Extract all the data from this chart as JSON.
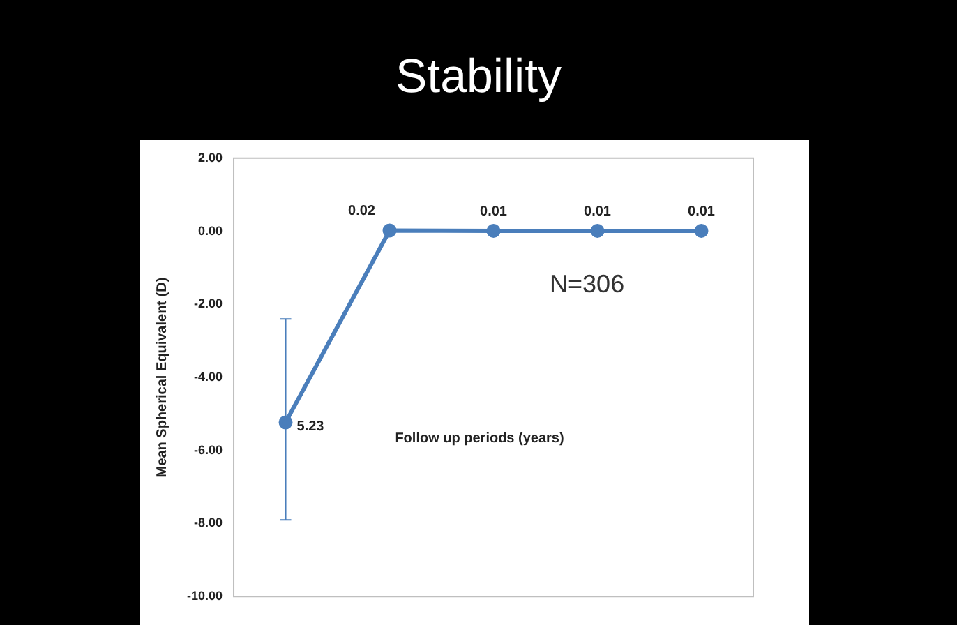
{
  "chart_data": {
    "type": "line",
    "title": "Stability",
    "ylabel": "Mean Spherical Equivalent (D)",
    "xlabel": "Follow up periods (years)",
    "categories": [
      null,
      null,
      null,
      null,
      null
    ],
    "series": [
      {
        "color": "#4a7ebb",
        "values": [
          -5.23,
          0.02,
          0.01,
          0.01,
          0.01
        ],
        "value_labels": [
          null,
          "0.02",
          "0.01",
          "0.01",
          "0.01"
        ],
        "errors": [
          [
            -7.9,
            -2.4
          ],
          null,
          null,
          null,
          null
        ]
      }
    ],
    "ylim": [
      -10,
      2
    ],
    "yticks": [
      {
        "value": 2,
        "label": "2.00"
      },
      {
        "value": 0,
        "label": "0.00"
      },
      {
        "value": -2,
        "label": "-2.00"
      },
      {
        "value": -4,
        "label": "-4.00"
      },
      {
        "value": -6,
        "label": "-6.00"
      },
      {
        "value": -8,
        "label": "-8.00"
      },
      {
        "value": -10,
        "label": "-10.00"
      }
    ],
    "annotations": [
      "N=306",
      "5.23"
    ],
    "grid": false,
    "legend": false,
    "marker": "circle",
    "line_style": "solid"
  }
}
